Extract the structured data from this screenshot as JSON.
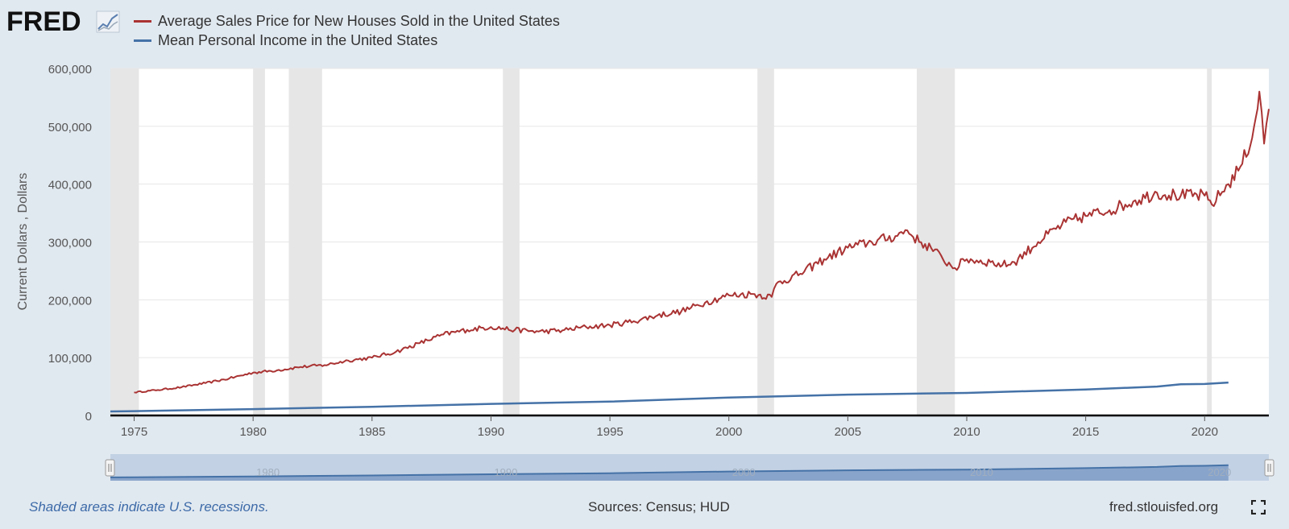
{
  "brand": {
    "name": "FRED",
    "logo_icon": "fred-chart-icon"
  },
  "legend": [
    {
      "label": "Average Sales Price for New Houses Sold in the United States",
      "color": "#aa3333"
    },
    {
      "label": "Mean Personal Income in the United States",
      "color": "#4572a7"
    }
  ],
  "footer": {
    "note": "Shaded areas indicate U.S. recessions.",
    "sources": "Sources: Census; HUD",
    "site": "fred.stlouisfed.org",
    "fullscreen_icon": "fullscreen-icon"
  },
  "chart_data": {
    "type": "line",
    "ylabel": "Current Dollars , Dollars",
    "ylim": [
      0,
      600000
    ],
    "xlim": [
      1974.0,
      2022.7
    ],
    "y_ticks": [
      "0",
      "100,000",
      "200,000",
      "300,000",
      "400,000",
      "500,000",
      "600,000"
    ],
    "x_ticks": [
      "1975",
      "1980",
      "1985",
      "1990",
      "1995",
      "2000",
      "2005",
      "2010",
      "2015",
      "2020"
    ],
    "navigator_ticks": [
      "1980",
      "1990",
      "2000",
      "2010",
      "2020"
    ],
    "grid": true,
    "recessions": [
      [
        1974.0,
        1975.2
      ],
      [
        1980.0,
        1980.5
      ],
      [
        1981.5,
        1982.9
      ],
      [
        1990.5,
        1991.2
      ],
      [
        2001.2,
        2001.9
      ],
      [
        2007.9,
        2009.5
      ],
      [
        2020.1,
        2020.3
      ]
    ],
    "series": [
      {
        "name": "Average Sales Price for New Houses Sold in the United States",
        "color": "#aa3333",
        "x": [
          1975.0,
          1976.0,
          1977.0,
          1978.0,
          1979.0,
          1980.0,
          1981.0,
          1982.0,
          1983.0,
          1984.0,
          1985.0,
          1986.0,
          1987.0,
          1988.0,
          1989.0,
          1990.0,
          1991.0,
          1992.0,
          1993.0,
          1994.0,
          1995.0,
          1996.0,
          1997.0,
          1998.0,
          1999.0,
          2000.0,
          2001.0,
          2001.8,
          2002.0,
          2003.0,
          2004.0,
          2005.0,
          2006.0,
          2007.0,
          2007.5,
          2008.0,
          2008.5,
          2009.0,
          2009.5,
          2010.0,
          2011.0,
          2011.5,
          2012.0,
          2013.0,
          2014.0,
          2015.0,
          2016.0,
          2017.0,
          2018.0,
          2019.0,
          2020.0,
          2020.3,
          2021.0,
          2021.5,
          2022.0,
          2022.3,
          2022.5,
          2022.7
        ],
        "values": [
          40000,
          44000,
          49000,
          56000,
          64000,
          74000,
          78000,
          84000,
          87000,
          95000,
          100000,
          110000,
          125000,
          140000,
          148000,
          153000,
          148000,
          145000,
          147000,
          153000,
          156000,
          163000,
          173000,
          180000,
          195000,
          208000,
          210000,
          205000,
          228000,
          245000,
          270000,
          290000,
          300000,
          310000,
          320000,
          300000,
          290000,
          270000,
          255000,
          270000,
          265000,
          260000,
          265000,
          300000,
          330000,
          345000,
          355000,
          370000,
          385000,
          380000,
          380000,
          365000,
          400000,
          430000,
          480000,
          560000,
          470000,
          530000
        ]
      },
      {
        "name": "Mean Personal Income in the United States",
        "color": "#4572a7",
        "x": [
          1974.0,
          1975.0,
          1980.0,
          1985.0,
          1990.0,
          1995.0,
          2000.0,
          2005.0,
          2010.0,
          2015.0,
          2018.0,
          2019.0,
          2020.0,
          2021.0
        ],
        "values": [
          7000,
          7500,
          11000,
          15000,
          20000,
          24000,
          31000,
          36000,
          39000,
          45000,
          50000,
          54000,
          54500,
          57000
        ]
      }
    ]
  }
}
